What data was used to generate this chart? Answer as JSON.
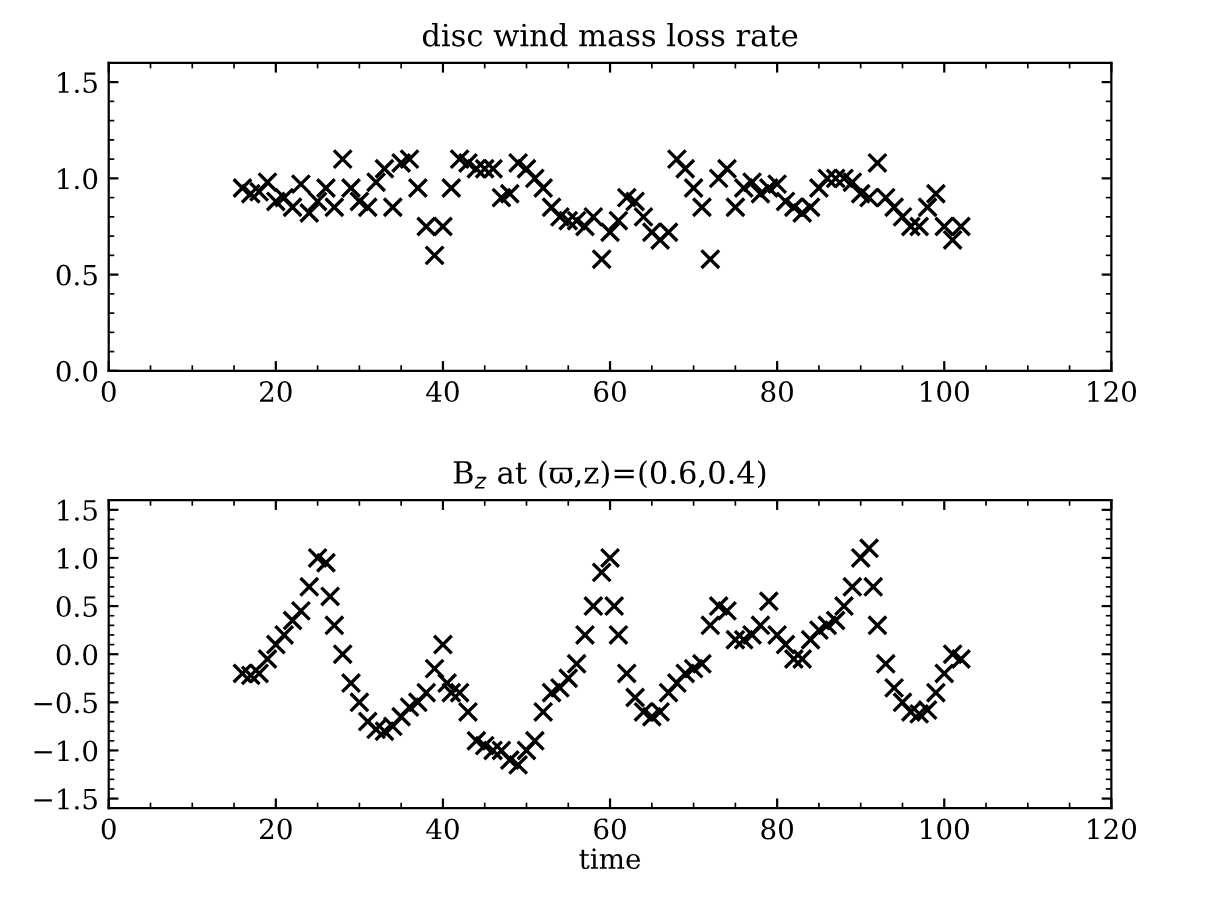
{
  "chart_data": [
    {
      "type": "scatter",
      "title": "disc wind mass loss rate",
      "marker": "cross",
      "xlim": [
        0,
        120
      ],
      "xticks": [
        0,
        20,
        40,
        60,
        80,
        100,
        120
      ],
      "ylim": [
        0,
        1.6
      ],
      "yticks": [
        {
          "value": 0,
          "label": "0.0"
        },
        {
          "value": 0.5,
          "label": "0.5"
        },
        {
          "value": 1,
          "label": "1.0"
        },
        {
          "value": 1.5,
          "label": "1.5"
        }
      ],
      "grid": false,
      "legend": false,
      "series": [
        {
          "color": "#000000",
          "x": [
            16,
            17,
            18,
            19,
            20,
            21,
            22,
            23,
            24,
            25,
            26,
            27,
            28,
            29,
            30,
            31,
            32,
            33,
            34,
            35,
            36,
            37,
            38,
            39,
            40,
            41,
            42,
            43,
            44,
            45,
            46,
            47,
            48,
            49,
            50,
            51,
            52,
            53,
            54,
            55,
            56,
            57,
            58,
            59,
            60,
            61,
            62,
            63,
            64,
            65,
            66,
            67,
            68,
            69,
            70,
            71,
            72,
            73,
            74,
            75,
            76,
            77,
            78,
            79,
            80,
            81,
            82,
            83,
            84,
            85,
            86,
            87,
            88,
            89,
            90,
            91,
            92,
            93,
            94,
            95,
            96,
            97,
            98,
            99,
            100,
            101,
            102
          ],
          "values": [
            0.95,
            0.92,
            0.93,
            0.98,
            0.88,
            0.9,
            0.85,
            0.97,
            0.82,
            0.88,
            0.95,
            0.85,
            1.1,
            0.95,
            0.88,
            0.85,
            0.98,
            1.05,
            0.85,
            1.08,
            1.1,
            0.95,
            0.75,
            0.6,
            0.75,
            0.95,
            1.1,
            1.08,
            1.05,
            1.05,
            1.05,
            0.9,
            0.92,
            1.08,
            1.05,
            1.0,
            0.95,
            0.85,
            0.8,
            0.78,
            0.78,
            0.75,
            0.8,
            0.58,
            0.72,
            0.78,
            0.9,
            0.88,
            0.8,
            0.72,
            0.68,
            0.72,
            1.1,
            1.05,
            0.95,
            0.85,
            0.58,
            1.0,
            1.05,
            0.85,
            0.95,
            0.98,
            0.92,
            0.95,
            0.97,
            0.88,
            0.85,
            0.82,
            0.85,
            0.95,
            1.0,
            1.0,
            1.0,
            0.98,
            0.92,
            0.9,
            1.08,
            0.9,
            0.85,
            0.8,
            0.75,
            0.75,
            0.85,
            0.92,
            0.75,
            0.68,
            0.75
          ]
        }
      ]
    },
    {
      "type": "scatter",
      "title": "B$_{z}$ at (ϖ,z)=(0.6,0.4)",
      "xlabel": "time",
      "marker": "cross",
      "xlim": [
        0,
        120
      ],
      "xticks": [
        0,
        20,
        40,
        60,
        80,
        100,
        120
      ],
      "ylim": [
        -1.6,
        1.6
      ],
      "yticks": [
        {
          "value": -1.5,
          "label": "−1.5"
        },
        {
          "value": -1,
          "label": "−1.0"
        },
        {
          "value": -0.5,
          "label": "−0.5"
        },
        {
          "value": 0,
          "label": "0.0"
        },
        {
          "value": 0.5,
          "label": "0.5"
        },
        {
          "value": 1,
          "label": "1.0"
        },
        {
          "value": 1.5,
          "label": "1.5"
        }
      ],
      "grid": false,
      "legend": false,
      "series": [
        {
          "color": "#000000",
          "x": [
            16,
            17,
            18,
            19,
            20,
            21,
            22,
            23,
            24,
            25,
            26,
            26.5,
            27,
            28,
            29,
            30,
            31,
            32,
            33,
            34,
            35,
            36,
            37,
            38,
            39,
            40,
            40.5,
            41,
            42,
            43,
            44,
            45,
            46,
            47,
            48,
            49,
            50,
            51,
            52,
            53,
            54,
            55,
            56,
            57,
            58,
            59,
            60,
            60.5,
            61,
            62,
            63,
            64,
            65,
            66,
            67,
            68,
            69,
            70,
            71,
            72,
            73,
            74,
            75,
            76,
            77,
            78,
            79,
            80,
            81,
            82,
            83,
            84,
            85,
            86,
            87,
            88,
            89,
            90,
            91,
            91.5,
            92,
            93,
            94,
            95,
            96,
            97,
            98,
            99,
            100,
            101,
            102
          ],
          "values": [
            -0.2,
            -0.22,
            -0.2,
            -0.05,
            0.1,
            0.2,
            0.35,
            0.45,
            0.7,
            1.0,
            0.95,
            0.6,
            0.3,
            0.0,
            -0.3,
            -0.5,
            -0.7,
            -0.78,
            -0.8,
            -0.75,
            -0.65,
            -0.55,
            -0.5,
            -0.4,
            -0.15,
            0.1,
            -0.3,
            -0.4,
            -0.4,
            -0.6,
            -0.9,
            -0.95,
            -1.0,
            -1.0,
            -1.1,
            -1.15,
            -1.0,
            -0.9,
            -0.6,
            -0.4,
            -0.35,
            -0.25,
            -0.1,
            0.2,
            0.5,
            0.85,
            1.0,
            0.5,
            0.2,
            -0.2,
            -0.45,
            -0.6,
            -0.65,
            -0.6,
            -0.4,
            -0.3,
            -0.2,
            -0.15,
            -0.1,
            0.3,
            0.5,
            0.45,
            0.15,
            0.15,
            0.2,
            0.3,
            0.55,
            0.2,
            0.1,
            -0.05,
            -0.05,
            0.15,
            0.25,
            0.3,
            0.35,
            0.5,
            0.7,
            1.0,
            1.1,
            0.7,
            0.3,
            -0.1,
            -0.35,
            -0.5,
            -0.6,
            -0.62,
            -0.58,
            -0.4,
            -0.2,
            0.0,
            -0.05
          ]
        }
      ]
    }
  ]
}
